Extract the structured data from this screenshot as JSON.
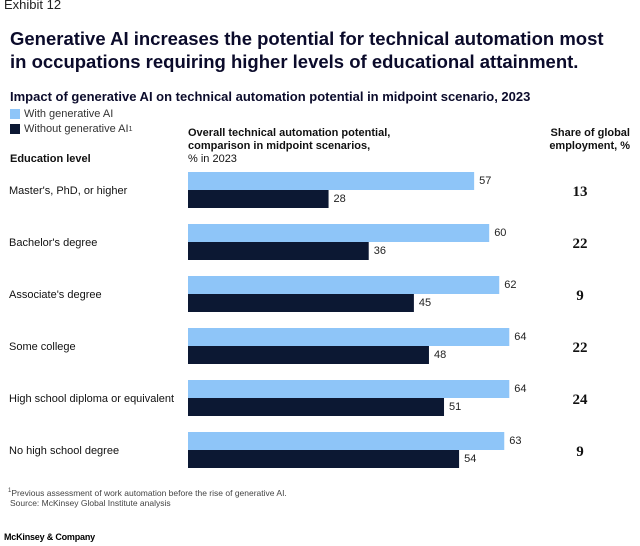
{
  "exhibit_label": "Exhibit 12",
  "headline": "Generative AI increases the potential for technical automation most in occupations requiring higher levels of educational attainment.",
  "footnote": "Previous assessment of work automation before the rise of generative AI.",
  "footnote_marker": "1",
  "source": "Source: McKinsey Global Institute analysis",
  "logo": "McKinsey & Company",
  "chart_data": {
    "type": "bar",
    "orientation": "horizontal",
    "title": "Impact of generative AI on technical automation potential in midpoint scenario, 2023",
    "category_header": "Education level",
    "value_header": "Overall technical automation potential, comparison in midpoint scenarios,",
    "value_header_unit": "% in 2023",
    "share_header": "Share of global employment, %",
    "xlim": [
      0,
      100
    ],
    "grid": false,
    "legend_position": "top-left",
    "categories": [
      "Master's, PhD, or higher",
      "Bachelor's degree",
      "Associate's degree",
      "Some college",
      "High school diploma or equivalent",
      "No high school degree"
    ],
    "series": [
      {
        "name": "With generative AI",
        "color": "#8ec5f8",
        "values": [
          57,
          60,
          62,
          64,
          64,
          63
        ]
      },
      {
        "name": "Without generative AI",
        "footnote_marker": "1",
        "color": "#0c1833",
        "values": [
          28,
          36,
          45,
          48,
          51,
          54
        ]
      }
    ],
    "share_of_global_employment": [
      13,
      22,
      9,
      22,
      24,
      9
    ]
  }
}
